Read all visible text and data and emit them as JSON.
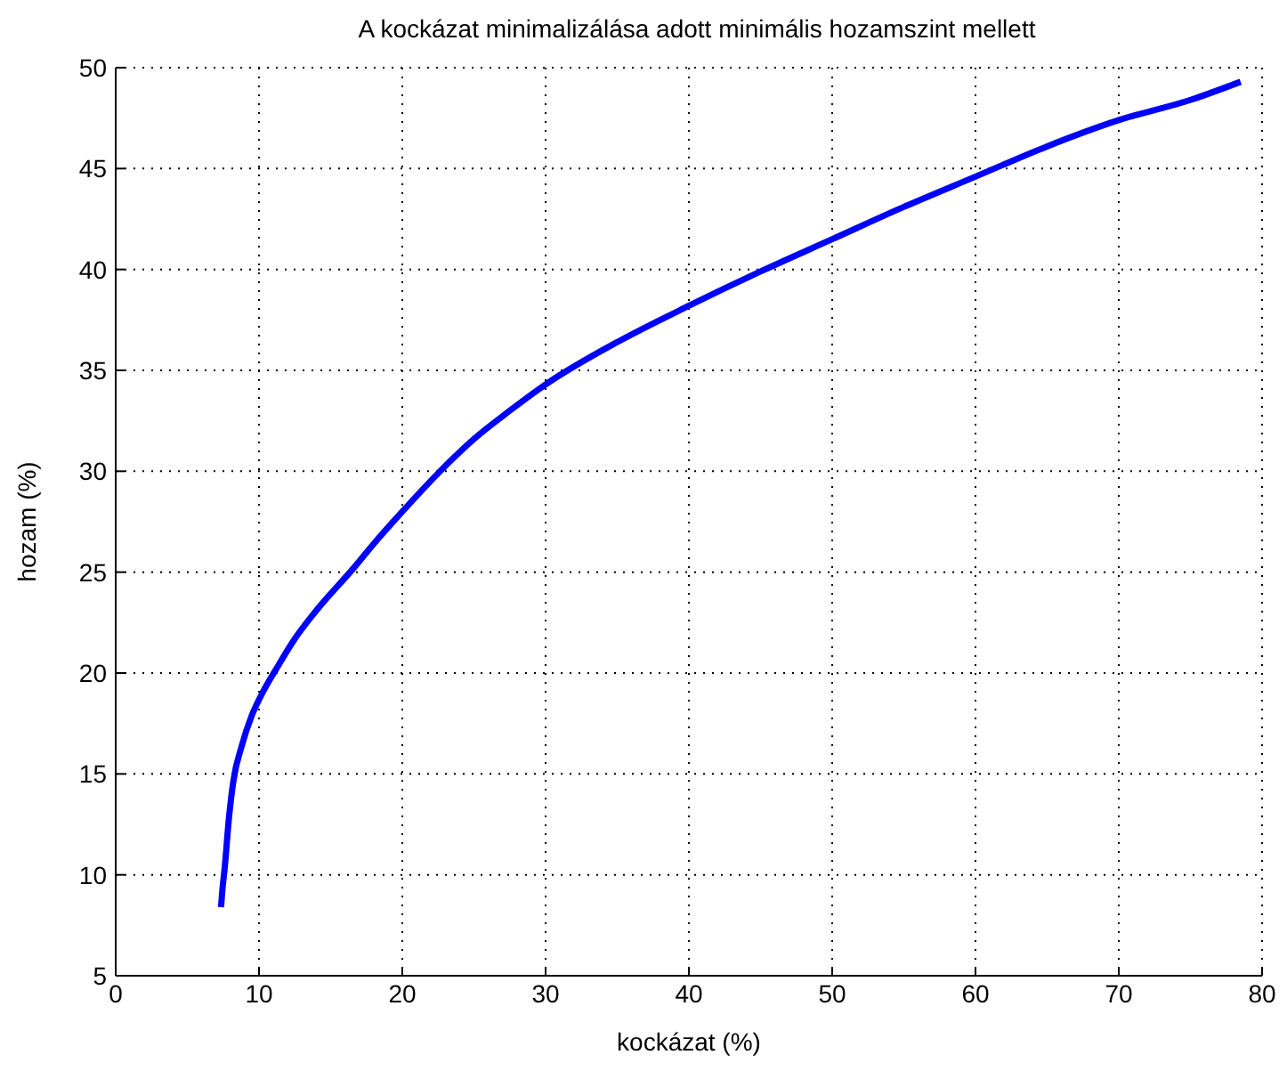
{
  "chart_data": {
    "type": "line",
    "title": "A kockázat minimalizálása adott minimális hozamszint mellett",
    "xlabel": "kockázat (%)",
    "ylabel": "hozam (%)",
    "x": [
      7.35,
      7.45,
      7.6,
      7.9,
      8.2,
      8.8,
      9.5,
      10.3,
      11.2,
      12.5,
      14,
      16.6,
      18,
      20,
      22.5,
      25,
      27.5,
      30,
      35,
      40,
      45,
      50,
      55,
      60,
      65,
      70,
      75,
      78.5
    ],
    "series": [
      {
        "color": "#0000ff",
        "values": [
          8.4,
          9.3,
          10.3,
          12.8,
          14.6,
          16.4,
          17.9,
          19.1,
          20.2,
          21.7,
          23.1,
          25.2,
          26.4,
          28,
          29.9,
          31.6,
          33,
          34.3,
          36.4,
          38.2,
          39.9,
          41.5,
          43.1,
          44.6,
          46.1,
          47.4,
          48.4,
          49.3
        ]
      }
    ],
    "xlim": [
      0,
      80
    ],
    "xticks": [
      0,
      10,
      20,
      30,
      40,
      50,
      60,
      70,
      80
    ],
    "ylim": [
      5,
      50
    ],
    "yticks": [
      5,
      10,
      15,
      20,
      25,
      30,
      35,
      40,
      45,
      50
    ],
    "grid": true,
    "marker": "none",
    "line_style": "solid"
  }
}
